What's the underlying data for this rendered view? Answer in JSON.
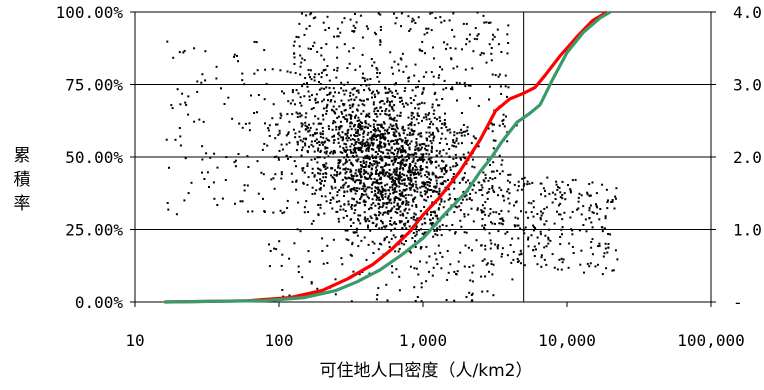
{
  "chart_data": {
    "type": "scatter",
    "title": "",
    "xlabel": "可住地人口密度（人/km2）",
    "ylabel": "累積率",
    "x_scale": "log",
    "xlim": [
      10,
      100000
    ],
    "ylim": [
      0,
      100
    ],
    "ylim_right": [
      0,
      4
    ],
    "x_ticks": [
      "10",
      "100",
      "1,000",
      "10,000",
      "100,000"
    ],
    "y_ticks": [
      "0.00%",
      "25.00%",
      "50.00%",
      "75.00%",
      "100.00%"
    ],
    "y_right_ticks": [
      "-",
      "1.0",
      "2.0",
      "3.0",
      "4.0"
    ],
    "grid": "horizontal",
    "reference_line_x": 5000,
    "series": [
      {
        "color": "#ff0000",
        "kind": "cumulative-line",
        "points": [
          [
            16,
            0
          ],
          [
            60,
            0.4
          ],
          [
            120,
            1.5
          ],
          [
            200,
            4
          ],
          [
            300,
            8
          ],
          [
            450,
            13
          ],
          [
            600,
            18
          ],
          [
            800,
            24
          ],
          [
            1000,
            30
          ],
          [
            1300,
            36
          ],
          [
            1800,
            45
          ],
          [
            2500,
            56
          ],
          [
            3200,
            66
          ],
          [
            4000,
            70
          ],
          [
            5000,
            72
          ],
          [
            6000,
            74
          ],
          [
            7000,
            78
          ],
          [
            9000,
            85
          ],
          [
            12000,
            92
          ],
          [
            15000,
            97
          ],
          [
            19000,
            100
          ]
        ]
      },
      {
        "color": "#3a9a6a",
        "kind": "cumulative-line",
        "points": [
          [
            16,
            0
          ],
          [
            80,
            0.5
          ],
          [
            150,
            1.5
          ],
          [
            250,
            4
          ],
          [
            350,
            7
          ],
          [
            500,
            11
          ],
          [
            700,
            16
          ],
          [
            1000,
            22
          ],
          [
            1400,
            30
          ],
          [
            2000,
            38
          ],
          [
            2500,
            45
          ],
          [
            3000,
            50
          ],
          [
            3500,
            55
          ],
          [
            4500,
            62
          ],
          [
            5500,
            65
          ],
          [
            6500,
            68
          ],
          [
            8000,
            77
          ],
          [
            10000,
            86
          ],
          [
            13000,
            93
          ],
          [
            17000,
            98
          ],
          [
            20000,
            100
          ]
        ]
      },
      {
        "color": "#000000",
        "kind": "scatter-points",
        "description_count": 2600
      }
    ]
  }
}
